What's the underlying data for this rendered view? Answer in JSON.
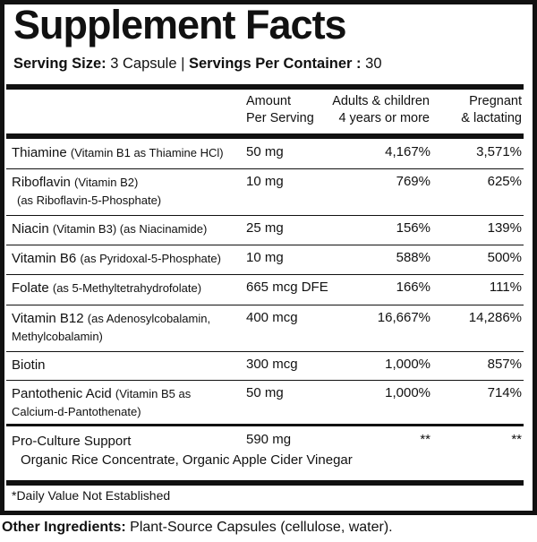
{
  "title": "Supplement Facts",
  "serving_size_label": "Serving Size:",
  "serving_size_value": "3 Capsule |",
  "servings_per_container_label": "Servings Per Container :",
  "servings_per_container_value": "30",
  "columns": {
    "amount": [
      "Amount",
      "Per Serving"
    ],
    "adults": [
      "Adults & children",
      "4 years or more"
    ],
    "pregnant": [
      "Pregnant",
      "& lactating"
    ]
  },
  "rows": [
    {
      "name": "Thiamine",
      "detail": "(Vitamin B1 as Thiamine HCl)",
      "detail2": "",
      "amount": "50 mg",
      "dv_adults": "4,167%",
      "dv_pregnant": "3,571%"
    },
    {
      "name": "Riboflavin",
      "detail": "(Vitamin B2)",
      "detail2": "(as Riboflavin-5-Phosphate)",
      "amount": "10 mg",
      "dv_adults": "769%",
      "dv_pregnant": "625%"
    },
    {
      "name": "Niacin",
      "detail": "(Vitamin B3) (as Niacinamide)",
      "detail2": "",
      "amount": "25 mg",
      "dv_adults": "156%",
      "dv_pregnant": "139%"
    },
    {
      "name": "Vitamin B6",
      "detail": "(as Pyridoxal-5-Phosphate)",
      "detail2": "",
      "amount": "10 mg",
      "dv_adults": "588%",
      "dv_pregnant": "500%"
    },
    {
      "name": "Folate",
      "detail": "(as 5-Methyltetrahydrofolate)",
      "detail2": "",
      "amount": "665 mcg DFE",
      "dv_adults": "166%",
      "dv_pregnant": "111%"
    },
    {
      "name": "Vitamin B12",
      "detail": "(as Adenosylcobalamin,",
      "detail2": "Methylcobalamin)",
      "amount": "400 mcg",
      "dv_adults": "16,667%",
      "dv_pregnant": "14,286%"
    },
    {
      "name": "Biotin",
      "detail": "",
      "detail2": "",
      "amount": "300 mcg",
      "dv_adults": "1,000%",
      "dv_pregnant": "857%"
    },
    {
      "name": "Pantothenic Acid",
      "detail": "(Vitamin B5 as",
      "detail2": "Calcium-d-Pantothenate)",
      "amount": "50 mg",
      "dv_adults": "1,000%",
      "dv_pregnant": "714%"
    },
    {
      "name": "Pro-Culture Support",
      "detail": "",
      "detail2": "Organic Rice Concentrate, Organic Apple Cider Vinegar",
      "amount": "590 mg",
      "dv_adults": "**",
      "dv_pregnant": "**"
    }
  ],
  "footnote": "*Daily Value Not Established",
  "other_ingredients_label": "Other Ingredients:",
  "other_ingredients_value": "Plant-Source Capsules (cellulose, water)."
}
